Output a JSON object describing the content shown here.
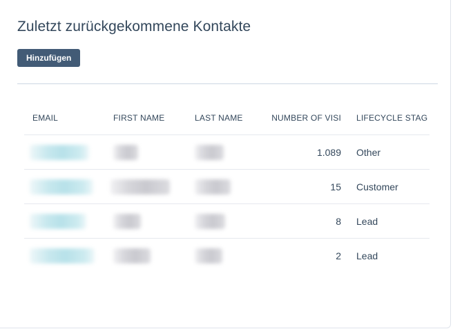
{
  "card": {
    "title": "Zuletzt zurückgekommene Kontakte",
    "add_button_label": "Hinzufügen"
  },
  "table": {
    "columns": [
      {
        "key": "email",
        "label": "EMAIL"
      },
      {
        "key": "first_name",
        "label": "FIRST NAME"
      },
      {
        "key": "last_name",
        "label": "LAST NAME"
      },
      {
        "key": "number_of_visits",
        "label": "NUMBER OF VISI"
      },
      {
        "key": "lifecycle_stage",
        "label": "LIFECYCLE STAG"
      }
    ],
    "rows": [
      {
        "number_of_visits": "1.089",
        "lifecycle_stage": "Other"
      },
      {
        "number_of_visits": "15",
        "lifecycle_stage": "Customer"
      },
      {
        "number_of_visits": "8",
        "lifecycle_stage": "Lead"
      },
      {
        "number_of_visits": "2",
        "lifecycle_stage": "Lead"
      }
    ],
    "redacted_fields": [
      "email",
      "first_name",
      "last_name"
    ]
  },
  "colors": {
    "text": "#33475b",
    "button_bg": "#425b76",
    "button_text": "#ffffff",
    "divider": "#cbd6e2"
  }
}
